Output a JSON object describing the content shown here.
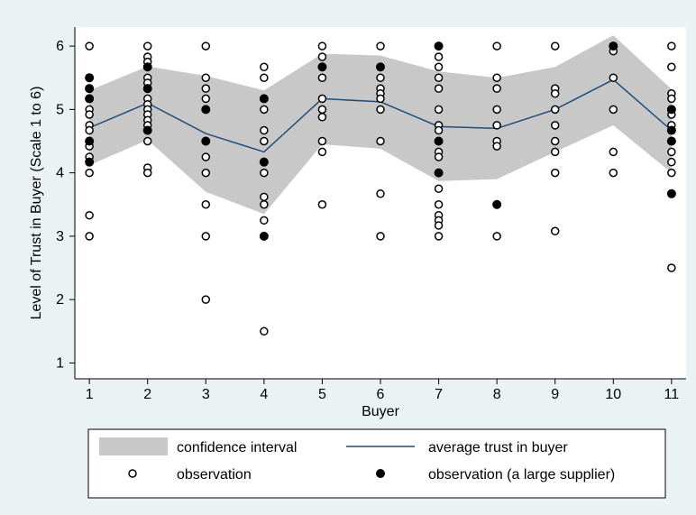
{
  "chart_data": {
    "type": "line",
    "title": "",
    "xlabel": "Buyer",
    "ylabel": "Level of Trust in Buyer (Scale 1 to 6)",
    "xlim": [
      0.75,
      11.25
    ],
    "ylim": [
      0.75,
      6.3
    ],
    "x_ticks": [
      1,
      2,
      3,
      4,
      5,
      6,
      7,
      8,
      9,
      10,
      11
    ],
    "y_ticks": [
      1,
      2,
      3,
      4,
      5,
      6
    ],
    "grid": false,
    "legend_position": "bottom",
    "colors": {
      "confidence_interval": "#c8c8c8",
      "average_line": "#1f4e79",
      "marker": "#000000",
      "background": "#eaf2f3",
      "plot_background": "#ffffff"
    },
    "series": [
      {
        "name": "confidence interval",
        "type": "area",
        "x": [
          1,
          2,
          3,
          4,
          5,
          6,
          7,
          8,
          9,
          10,
          11
        ],
        "lower": [
          4.12,
          4.52,
          3.7,
          3.35,
          4.45,
          4.38,
          3.87,
          3.9,
          4.33,
          4.75,
          4.0
        ],
        "upper": [
          5.3,
          5.68,
          5.53,
          5.3,
          5.88,
          5.85,
          5.6,
          5.5,
          5.67,
          6.17,
          5.32
        ]
      },
      {
        "name": "average trust in buyer",
        "type": "line",
        "x": [
          1,
          2,
          3,
          4,
          5,
          6,
          7,
          8,
          9,
          10,
          11
        ],
        "y": [
          4.71,
          5.1,
          4.62,
          4.33,
          5.17,
          5.12,
          4.73,
          4.7,
          5.0,
          5.47,
          4.67
        ]
      },
      {
        "name": "observation",
        "type": "scatter",
        "marker": "hollow-circle",
        "points": [
          [
            1,
            6
          ],
          [
            1,
            5.5
          ],
          [
            1,
            5.33
          ],
          [
            1,
            5.17
          ],
          [
            1,
            5
          ],
          [
            1,
            4.92
          ],
          [
            1,
            4.75
          ],
          [
            1,
            4.67
          ],
          [
            1,
            4.5
          ],
          [
            1,
            4.42
          ],
          [
            1,
            4.25
          ],
          [
            1,
            4.17
          ],
          [
            1,
            4
          ],
          [
            1,
            3.33
          ],
          [
            1,
            3
          ],
          [
            2,
            6
          ],
          [
            2,
            5.83
          ],
          [
            2,
            5.75
          ],
          [
            2,
            5.67
          ],
          [
            2,
            5.5
          ],
          [
            2,
            5.42
          ],
          [
            2,
            5.33
          ],
          [
            2,
            5.17
          ],
          [
            2,
            5.08
          ],
          [
            2,
            5
          ],
          [
            2,
            4.92
          ],
          [
            2,
            4.83
          ],
          [
            2,
            4.75
          ],
          [
            2,
            4.67
          ],
          [
            2,
            4.5
          ],
          [
            2,
            4.08
          ],
          [
            2,
            4
          ],
          [
            3,
            6
          ],
          [
            3,
            5.5
          ],
          [
            3,
            5.33
          ],
          [
            3,
            5.17
          ],
          [
            3,
            5
          ],
          [
            3,
            4.5
          ],
          [
            3,
            4.25
          ],
          [
            3,
            4
          ],
          [
            3,
            3.5
          ],
          [
            3,
            3
          ],
          [
            3,
            2
          ],
          [
            4,
            5.67
          ],
          [
            4,
            5.5
          ],
          [
            4,
            5
          ],
          [
            4,
            4.67
          ],
          [
            4,
            4.5
          ],
          [
            4,
            4
          ],
          [
            4,
            3.62
          ],
          [
            4,
            3.5
          ],
          [
            4,
            3.25
          ],
          [
            4,
            1.5
          ],
          [
            5,
            6
          ],
          [
            5,
            5.83
          ],
          [
            5,
            5.67
          ],
          [
            5,
            5.5
          ],
          [
            5,
            5.17
          ],
          [
            5,
            5
          ],
          [
            5,
            4.88
          ],
          [
            5,
            4.5
          ],
          [
            5,
            4.33
          ],
          [
            5,
            3.5
          ],
          [
            6,
            6
          ],
          [
            6,
            5.5
          ],
          [
            6,
            5.33
          ],
          [
            6,
            5.25
          ],
          [
            6,
            5.17
          ],
          [
            6,
            5
          ],
          [
            6,
            4.5
          ],
          [
            6,
            3.67
          ],
          [
            6,
            3
          ],
          [
            7,
            6
          ],
          [
            7,
            5.83
          ],
          [
            7,
            5.67
          ],
          [
            7,
            5.5
          ],
          [
            7,
            5.33
          ],
          [
            7,
            5
          ],
          [
            7,
            4.75
          ],
          [
            7,
            4.67
          ],
          [
            7,
            4.5
          ],
          [
            7,
            4.33
          ],
          [
            7,
            4.25
          ],
          [
            7,
            4
          ],
          [
            7,
            3.75
          ],
          [
            7,
            3.5
          ],
          [
            7,
            3.33
          ],
          [
            7,
            3.25
          ],
          [
            7,
            3.17
          ],
          [
            7,
            3
          ],
          [
            8,
            6
          ],
          [
            8,
            5.5
          ],
          [
            8,
            5.33
          ],
          [
            8,
            5
          ],
          [
            8,
            4.75
          ],
          [
            8,
            4.5
          ],
          [
            8,
            4.42
          ],
          [
            8,
            3
          ],
          [
            9,
            6
          ],
          [
            9,
            5.33
          ],
          [
            9,
            5.25
          ],
          [
            9,
            5
          ],
          [
            9,
            4.75
          ],
          [
            9,
            4.5
          ],
          [
            9,
            4.33
          ],
          [
            9,
            4
          ],
          [
            9,
            3.08
          ],
          [
            10,
            6
          ],
          [
            10,
            5.92
          ],
          [
            10,
            5.5
          ],
          [
            10,
            5
          ],
          [
            10,
            4.33
          ],
          [
            10,
            4
          ],
          [
            11,
            6
          ],
          [
            11,
            5.67
          ],
          [
            11,
            5.25
          ],
          [
            11,
            5.17
          ],
          [
            11,
            5
          ],
          [
            11,
            4.92
          ],
          [
            11,
            4.75
          ],
          [
            11,
            4.5
          ],
          [
            11,
            4.33
          ],
          [
            11,
            4.17
          ],
          [
            11,
            4
          ],
          [
            11,
            2.5
          ]
        ]
      },
      {
        "name": "observation (a large supplier)",
        "type": "scatter",
        "marker": "filled-circle",
        "points": [
          [
            1,
            5.5
          ],
          [
            1,
            5.33
          ],
          [
            1,
            5.17
          ],
          [
            1,
            4.5
          ],
          [
            1,
            4.17
          ],
          [
            2,
            5.67
          ],
          [
            2,
            5.33
          ],
          [
            2,
            4.67
          ],
          [
            3,
            5
          ],
          [
            3,
            4.5
          ],
          [
            4,
            5.17
          ],
          [
            4,
            4.17
          ],
          [
            4,
            3
          ],
          [
            5,
            5.67
          ],
          [
            6,
            5.67
          ],
          [
            7,
            6
          ],
          [
            7,
            4.5
          ],
          [
            7,
            4
          ],
          [
            8,
            3.5
          ],
          [
            10,
            6
          ],
          [
            11,
            5
          ],
          [
            11,
            4.67
          ],
          [
            11,
            4.5
          ],
          [
            11,
            3.67
          ]
        ]
      }
    ]
  }
}
